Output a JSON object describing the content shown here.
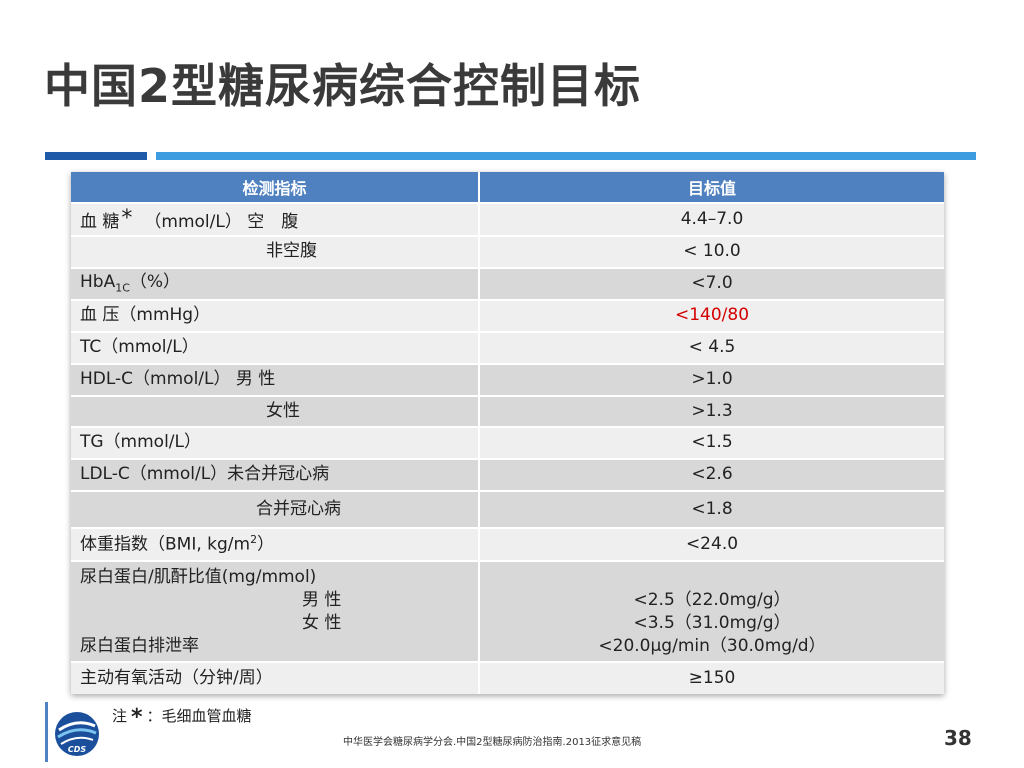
{
  "title": "中国2型糖尿病综合控制目标",
  "table": {
    "headers": [
      "检测指标",
      "目标值"
    ],
    "rows": {
      "blood_glucose": {
        "label_prefix": "血 糖",
        "star": "*",
        "label_suffix": "（mmol/L） 空　腹",
        "value": "4.4–7.0"
      },
      "non_fasting": {
        "label": "非空腹",
        "value": "< 10.0"
      },
      "hba1c": {
        "label_main": "HbA",
        "label_sub": "1C",
        "label_rest": "（%）",
        "value": "<7.0"
      },
      "blood_pressure": {
        "label": "血 压（mmHg）",
        "value": "<140/80"
      },
      "tc": {
        "label": "TC（mmol/L）",
        "value": "< 4.5"
      },
      "hdl_male": {
        "label": "HDL-C（mmol/L）  男 性",
        "value": ">1.0"
      },
      "hdl_female": {
        "label": "女性",
        "value": ">1.3"
      },
      "tg": {
        "label": "TG（mmol/L）",
        "value": "<1.5"
      },
      "ldl_no_chd": {
        "label": "LDL-C（mmol/L）未合并冠心病",
        "value": "<2.6"
      },
      "ldl_chd": {
        "label": "合并冠心病",
        "value": "<1.8"
      },
      "bmi": {
        "label_main": "体重指数（BMI, kg/m",
        "label_sup": "2",
        "label_rest": "）",
        "value": "<24.0"
      },
      "urine": {
        "line1": "尿白蛋白/肌酐比值(mg/mmol)",
        "line2": "男 性",
        "line3": "女 性",
        "line4": "尿白蛋白排泄率",
        "value1": "<2.5（22.0mg/g）",
        "value2": "<3.5（31.0mg/g）",
        "value3": "<20.0μg/min（30.0mg/d）"
      },
      "exercise": {
        "label": "主动有氧活动（分钟/周）",
        "value": "≥150"
      }
    }
  },
  "footer": {
    "note_prefix": "注",
    "note_star": "*",
    "note_text": "：毛细血管血糖",
    "logo_text": "CDS",
    "source": "中华医学会糖尿病学分会.中国2型糖尿病防治指南.2013征求意见稿",
    "page_number": "38"
  },
  "colors": {
    "title": "#3a3a3a",
    "header_bg": "#4f80c0",
    "rule_dark": "#1f5aa8",
    "rule_light": "#3d9be0",
    "row_light": "#efefef",
    "row_dark": "#d8d8d8",
    "highlight": "#d40000"
  }
}
